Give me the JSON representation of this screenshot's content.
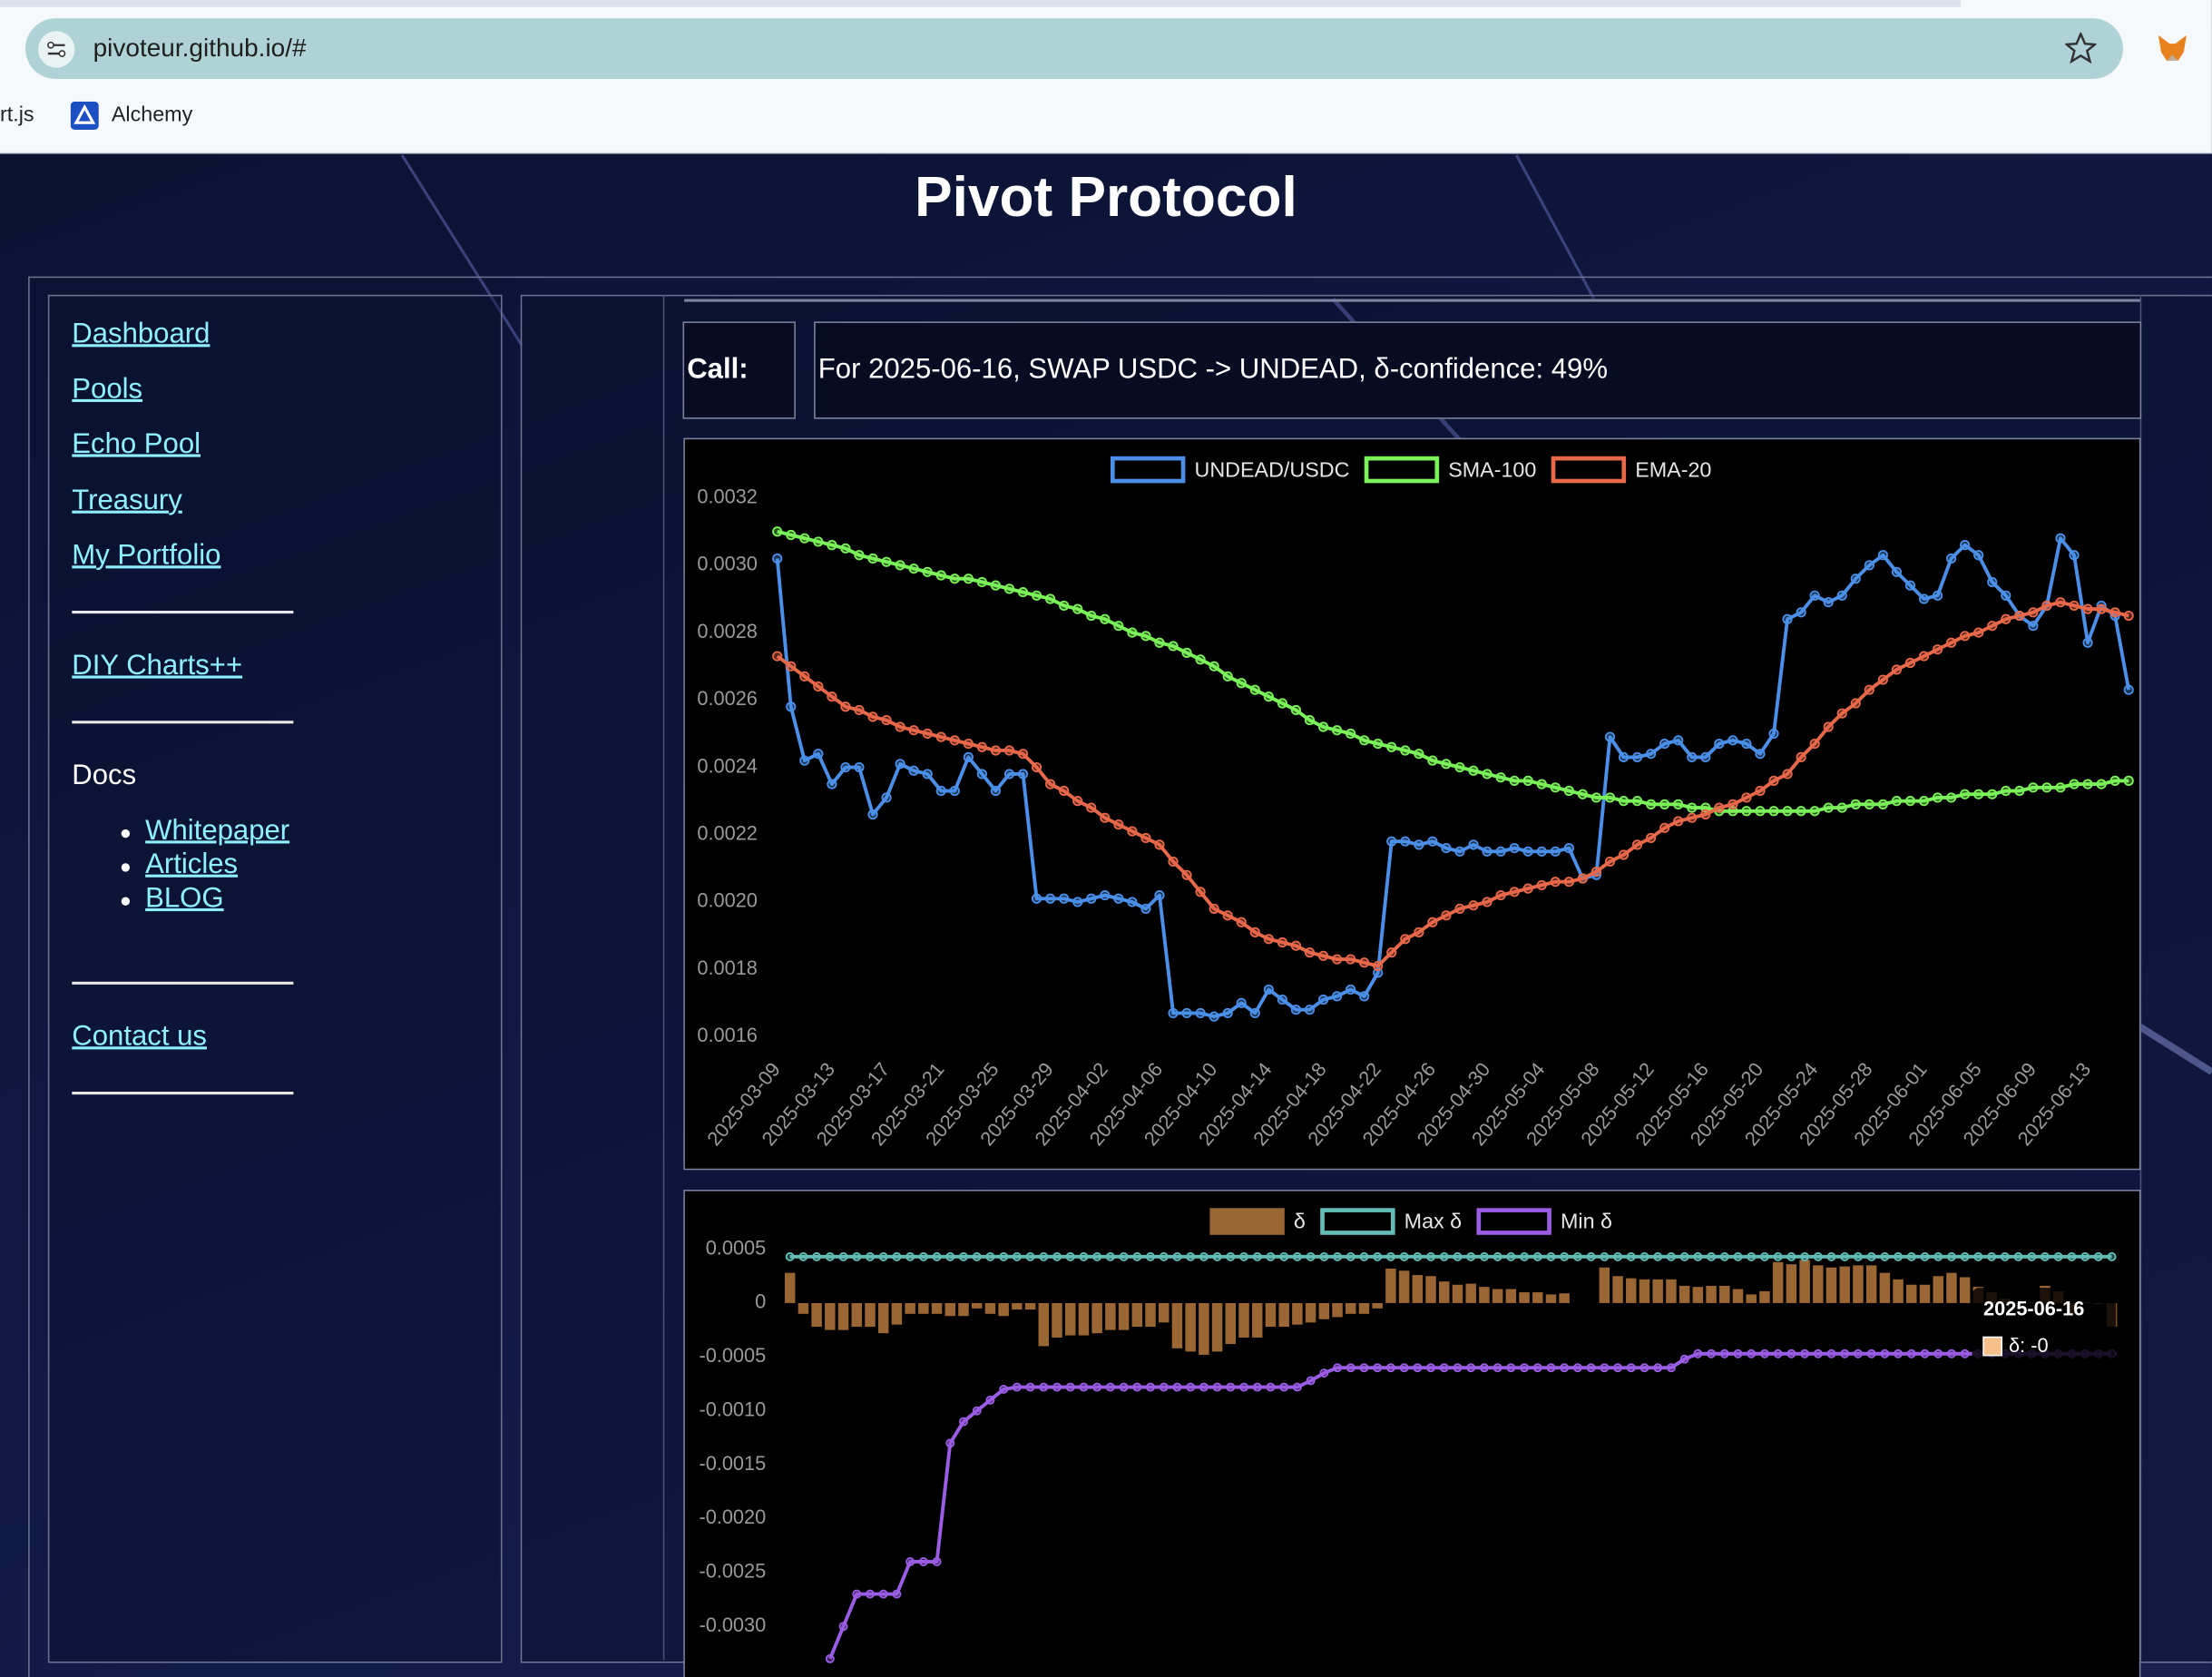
{
  "browser": {
    "url": "pivoteur.github.io/#",
    "bookmarks": [
      "rt.js",
      "Alchemy"
    ]
  },
  "header": {
    "title": "Pivot Protocol"
  },
  "nav": {
    "links": [
      "Dashboard",
      "Pools",
      "Echo Pool",
      "Treasury",
      "My Portfolio"
    ],
    "tools": [
      "DIY Charts++"
    ],
    "docs_heading": "Docs",
    "docs": [
      "Whitepaper",
      "Articles",
      "BLOG"
    ],
    "contact": "Contact us"
  },
  "call": {
    "label": "Call:",
    "text": "For 2025-06-16, SWAP USDC -> UNDEAD, δ-confidence: 49%"
  },
  "chart_data": [
    {
      "type": "line",
      "grid": false,
      "categories": [
        "2025-03-09",
        null,
        null,
        null,
        "2025-03-13",
        null,
        null,
        null,
        "2025-03-17",
        null,
        null,
        null,
        "2025-03-21",
        null,
        null,
        null,
        "2025-03-25",
        null,
        null,
        null,
        "2025-03-29",
        null,
        null,
        null,
        "2025-04-02",
        null,
        null,
        null,
        "2025-04-06",
        null,
        null,
        null,
        "2025-04-10",
        null,
        null,
        null,
        "2025-04-14",
        null,
        null,
        null,
        "2025-04-18",
        null,
        null,
        null,
        "2025-04-22",
        null,
        null,
        null,
        "2025-04-26",
        null,
        null,
        null,
        "2025-04-30",
        null,
        null,
        null,
        "2025-05-04",
        null,
        null,
        null,
        "2025-05-08",
        null,
        null,
        null,
        "2025-05-12",
        null,
        null,
        null,
        "2025-05-16",
        null,
        null,
        null,
        "2025-05-20",
        null,
        null,
        null,
        "2025-05-24",
        null,
        null,
        null,
        "2025-05-28",
        null,
        null,
        null,
        "2025-06-01",
        null,
        null,
        null,
        "2025-06-05",
        null,
        null,
        null,
        "2025-06-09",
        null,
        null,
        null,
        "2025-06-13",
        null,
        null,
        null
      ],
      "ylim": [
        0.0016,
        0.0032
      ],
      "yticks": [
        0.0032,
        {
          "value": 0.003,
          "label": "0.0030"
        },
        0.0028,
        0.0026,
        0.0024,
        0.0022,
        {
          "value": 0.002,
          "label": "0.0020"
        },
        0.0018,
        0.0016
      ],
      "series": [
        {
          "name": "UNDEAD/USDC",
          "color": "#4b8fe8",
          "values": [
            0.00302,
            0.00258,
            0.00242,
            0.00244,
            0.00235,
            0.0024,
            0.0024,
            0.00226,
            0.00231,
            0.00241,
            0.00239,
            0.00238,
            0.00233,
            0.00233,
            0.00243,
            0.00238,
            0.00233,
            0.00238,
            0.00238,
            0.00201,
            0.00201,
            0.00201,
            0.002,
            0.00201,
            0.00202,
            0.00201,
            0.002,
            0.00198,
            0.00202,
            0.00167,
            0.00167,
            0.00167,
            0.00166,
            0.00167,
            0.0017,
            0.00167,
            0.00174,
            0.00171,
            0.00168,
            0.00168,
            0.00171,
            0.00172,
            0.00174,
            0.00172,
            0.00179,
            0.00218,
            0.00218,
            0.00217,
            0.00218,
            0.00216,
            0.00215,
            0.00217,
            0.00215,
            0.00215,
            0.00216,
            0.00215,
            0.00215,
            0.00215,
            0.00216,
            0.00207,
            0.00208,
            0.00249,
            0.00243,
            0.00243,
            0.00244,
            0.00247,
            0.00248,
            0.00243,
            0.00243,
            0.00247,
            0.00248,
            0.00247,
            0.00244,
            0.0025,
            0.00284,
            0.00286,
            0.00291,
            0.00289,
            0.00291,
            0.00296,
            0.003,
            0.00303,
            0.00298,
            0.00294,
            0.0029,
            0.00291,
            0.00302,
            0.00306,
            0.00303,
            0.00295,
            0.00291,
            0.00285,
            0.00282,
            0.00288,
            0.00308,
            0.00303,
            0.00277,
            0.00288,
            0.00285,
            0.00263
          ]
        },
        {
          "name": "SMA-100",
          "color": "#7cf25a",
          "values": [
            0.0031,
            0.00309,
            0.00308,
            0.00307,
            0.00306,
            0.00305,
            0.00303,
            0.00302,
            0.00301,
            0.003,
            0.00299,
            0.00298,
            0.00297,
            0.00296,
            0.00296,
            0.00295,
            0.00294,
            0.00293,
            0.00292,
            0.00291,
            0.0029,
            0.00288,
            0.00287,
            0.00285,
            0.00284,
            0.00282,
            0.0028,
            0.00279,
            0.00277,
            0.00276,
            0.00274,
            0.00272,
            0.0027,
            0.00267,
            0.00265,
            0.00263,
            0.00261,
            0.00259,
            0.00257,
            0.00254,
            0.00252,
            0.00251,
            0.0025,
            0.00248,
            0.00247,
            0.00246,
            0.00245,
            0.00244,
            0.00242,
            0.00241,
            0.0024,
            0.00239,
            0.00238,
            0.00237,
            0.00236,
            0.00236,
            0.00235,
            0.00234,
            0.00233,
            0.00232,
            0.00231,
            0.00231,
            0.0023,
            0.0023,
            0.00229,
            0.00229,
            0.00229,
            0.00228,
            0.00228,
            0.00227,
            0.00227,
            0.00227,
            0.00227,
            0.00227,
            0.00227,
            0.00227,
            0.00227,
            0.00228,
            0.00228,
            0.00229,
            0.00229,
            0.00229,
            0.0023,
            0.0023,
            0.0023,
            0.00231,
            0.00231,
            0.00232,
            0.00232,
            0.00232,
            0.00233,
            0.00233,
            0.00234,
            0.00234,
            0.00234,
            0.00235,
            0.00235,
            0.00235,
            0.00236,
            0.00236
          ]
        },
        {
          "name": "EMA-20",
          "color": "#e8684a",
          "values": [
            0.00273,
            0.0027,
            0.00267,
            0.00264,
            0.00261,
            0.00258,
            0.00257,
            0.00255,
            0.00254,
            0.00252,
            0.00251,
            0.0025,
            0.00249,
            0.00248,
            0.00247,
            0.00246,
            0.00245,
            0.00245,
            0.00244,
            0.0024,
            0.00235,
            0.00233,
            0.0023,
            0.00228,
            0.00225,
            0.00223,
            0.00221,
            0.00219,
            0.00217,
            0.00212,
            0.00208,
            0.00203,
            0.00198,
            0.00196,
            0.00194,
            0.00191,
            0.00189,
            0.00188,
            0.00187,
            0.00185,
            0.00184,
            0.00183,
            0.00183,
            0.00182,
            0.00181,
            0.00185,
            0.00189,
            0.00191,
            0.00194,
            0.00196,
            0.00198,
            0.00199,
            0.002,
            0.00202,
            0.00203,
            0.00204,
            0.00205,
            0.00206,
            0.00206,
            0.00207,
            0.00209,
            0.00212,
            0.00214,
            0.00217,
            0.00219,
            0.00222,
            0.00224,
            0.00225,
            0.00226,
            0.00228,
            0.00229,
            0.00231,
            0.00233,
            0.00236,
            0.00238,
            0.00243,
            0.00247,
            0.00252,
            0.00256,
            0.00259,
            0.00263,
            0.00266,
            0.00269,
            0.00271,
            0.00273,
            0.00275,
            0.00277,
            0.00279,
            0.0028,
            0.00282,
            0.00284,
            0.00285,
            0.00286,
            0.00288,
            0.00289,
            0.00288,
            0.00287,
            0.00287,
            0.00286,
            0.00285
          ]
        }
      ]
    },
    {
      "type": "bar",
      "grid": false,
      "ylim": [
        -0.0033,
        0.0006
      ],
      "yticks": [
        0.0005,
        0,
        -0.0005,
        {
          "value": -0.001,
          "label": "-0.0010"
        },
        -0.0015,
        {
          "value": -0.002,
          "label": "-0.0020"
        },
        -0.0025,
        {
          "value": -0.003,
          "label": "-0.0030"
        }
      ],
      "tooltip": {
        "title": "2025-06-16",
        "label": "δ: -0"
      },
      "series": [
        {
          "name": "δ",
          "type": "bar",
          "color": "#9a6633",
          "values": [
            0.00028,
            -0.0001,
            -0.00022,
            -0.00025,
            -0.00025,
            -0.00022,
            -0.00022,
            -0.00028,
            -0.0002,
            -0.0001,
            -0.0001,
            -0.0001,
            -0.00012,
            -0.00012,
            -5e-05,
            -0.0001,
            -0.00012,
            -6e-05,
            -6e-05,
            -0.0004,
            -0.00032,
            -0.0003,
            -0.0003,
            -0.00028,
            -0.00025,
            -0.00025,
            -0.00022,
            -0.00022,
            -0.00018,
            -0.00042,
            -0.00045,
            -0.00048,
            -0.00045,
            -0.00038,
            -0.00032,
            -0.00032,
            -0.00022,
            -0.00022,
            -0.0002,
            -0.00018,
            -0.00015,
            -0.00013,
            -0.0001,
            -0.0001,
            -5e-05,
            0.00032,
            0.0003,
            0.00026,
            0.00025,
            0.0002,
            0.00017,
            0.00018,
            0.00015,
            0.00013,
            0.00013,
            0.0001,
            0.0001,
            8e-05,
            9e-05,
            0,
            0,
            0.00033,
            0.00025,
            0.00023,
            0.00022,
            0.00022,
            0.00022,
            0.00016,
            0.00015,
            0.00016,
            0.00016,
            0.00013,
            8e-05,
            0.00011,
            0.00038,
            0.00036,
            0.0004,
            0.00035,
            0.00033,
            0.00034,
            0.00035,
            0.00035,
            0.00028,
            0.00022,
            0.00017,
            0.00017,
            0.00025,
            0.00028,
            0.00024,
            0.00015,
            0.0001,
            4e-05,
            -1e-05,
            1e-05,
            0.00016,
            0.00011,
            -0.0001,
            1e-05,
            -1e-05,
            -0.00022
          ]
        },
        {
          "name": "Max δ",
          "type": "line",
          "color": "#62bdb7",
          "values": [
            0.00043,
            0.00043,
            0.00043,
            0.00043,
            0.00043,
            0.00043,
            0.00043,
            0.00043,
            0.00043,
            0.00043,
            0.00043,
            0.00043,
            0.00043,
            0.00043,
            0.00043,
            0.00043,
            0.00043,
            0.00043,
            0.00043,
            0.00043,
            0.00043,
            0.00043,
            0.00043,
            0.00043,
            0.00043,
            0.00043,
            0.00043,
            0.00043,
            0.00043,
            0.00043,
            0.00043,
            0.00043,
            0.00043,
            0.00043,
            0.00043,
            0.00043,
            0.00043,
            0.00043,
            0.00043,
            0.00043,
            0.00043,
            0.00043,
            0.00043,
            0.00043,
            0.00043,
            0.00043,
            0.00043,
            0.00043,
            0.00043,
            0.00043,
            0.00043,
            0.00043,
            0.00043,
            0.00043,
            0.00043,
            0.00043,
            0.00043,
            0.00043,
            0.00043,
            0.00043,
            0.00043,
            0.00043,
            0.00043,
            0.00043,
            0.00043,
            0.00043,
            0.00043,
            0.00043,
            0.00043,
            0.00043,
            0.00043,
            0.00043,
            0.00043,
            0.00043,
            0.00043,
            0.00043,
            0.00043,
            0.00043,
            0.00043,
            0.00043,
            0.00043,
            0.00043,
            0.00043,
            0.00043,
            0.00043,
            0.00043,
            0.00043,
            0.00043,
            0.00043,
            0.00043,
            0.00043,
            0.00043,
            0.00043,
            0.00043,
            0.00043,
            0.00043,
            0.00043,
            0.00043,
            0.00043,
            0.00043
          ]
        },
        {
          "name": "Min δ",
          "type": "line",
          "color": "#9b5de5",
          "values": [
            null,
            null,
            null,
            -0.0033,
            -0.003,
            -0.0027,
            -0.0027,
            -0.0027,
            -0.0027,
            -0.0024,
            -0.0024,
            -0.0024,
            -0.0013,
            -0.0011,
            -0.001,
            -0.0009,
            -0.0008,
            -0.00078,
            -0.00078,
            -0.00078,
            -0.00078,
            -0.00078,
            -0.00078,
            -0.00078,
            -0.00078,
            -0.00078,
            -0.00078,
            -0.00078,
            -0.00078,
            -0.00078,
            -0.00078,
            -0.00078,
            -0.00078,
            -0.00078,
            -0.00078,
            -0.00078,
            -0.00078,
            -0.00078,
            -0.00078,
            -0.00072,
            -0.00065,
            -0.0006,
            -0.0006,
            -0.0006,
            -0.0006,
            -0.0006,
            -0.0006,
            -0.0006,
            -0.0006,
            -0.0006,
            -0.0006,
            -0.0006,
            -0.0006,
            -0.0006,
            -0.0006,
            -0.0006,
            -0.0006,
            -0.0006,
            -0.0006,
            -0.0006,
            -0.0006,
            -0.0006,
            -0.0006,
            -0.0006,
            -0.0006,
            -0.0006,
            -0.0006,
            -0.00052,
            -0.00047,
            -0.00047,
            -0.00047,
            -0.00047,
            -0.00047,
            -0.00047,
            -0.00047,
            -0.00047,
            -0.00047,
            -0.00047,
            -0.00047,
            -0.00047,
            -0.00047,
            -0.00047,
            -0.00047,
            -0.00047,
            -0.00047,
            -0.00047,
            -0.00047,
            -0.00047,
            -0.00047,
            -0.00047,
            -0.00047,
            -0.00047,
            -0.00047,
            -0.00047,
            -0.00047,
            -0.00047,
            -0.00047,
            -0.00047,
            -0.00047,
            -0.00047
          ]
        }
      ]
    }
  ]
}
